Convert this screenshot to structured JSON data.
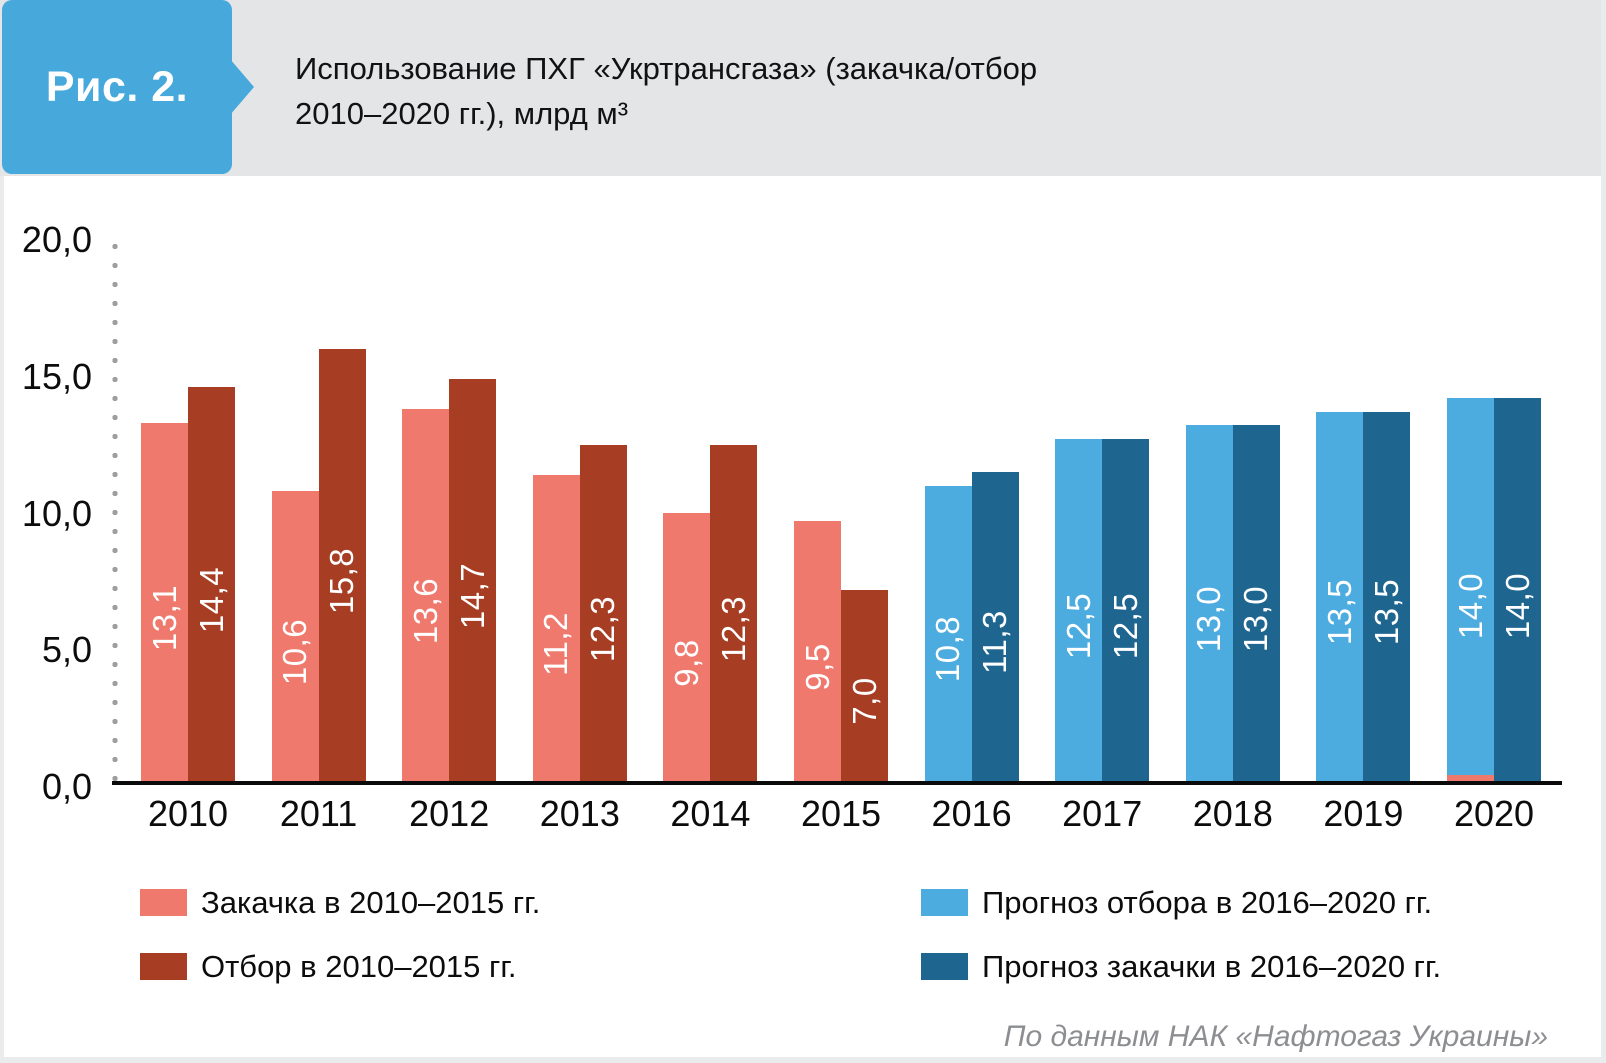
{
  "figure": {
    "badge": "Рис. 2.",
    "title_line1": "Использование ПХГ «Укртрансгаза» (закачка/отбор",
    "title_line2": "2010–2020 гг.), млрд м³",
    "source": "По данным НАК «Нафтогаз Украины»"
  },
  "colors": {
    "badge_blue": "#47A8DC",
    "header_strip": "#E4E5E7",
    "injection_actual": "#F0796E",
    "withdrawal_actual": "#A73E24",
    "withdrawal_forecast": "#4CABDF",
    "injection_forecast": "#1E6590",
    "axis_dots": "#9C9EA0",
    "source_text": "#8C8E91"
  },
  "chart_data": {
    "type": "bar",
    "title": "Использование ПХГ «Укртрансгаза» (закачка/отбор 2010–2020 гг.), млрд м³",
    "unit": "млрд м³",
    "categories": [
      "2010",
      "2011",
      "2012",
      "2013",
      "2014",
      "2015",
      "2016",
      "2017",
      "2018",
      "2019",
      "2020"
    ],
    "series": [
      {
        "name": "Закачка в 2010–2015 гг.",
        "key": "injection-actual",
        "color": "#F0796E",
        "values": [
          13.1,
          10.6,
          13.6,
          11.2,
          9.8,
          9.5,
          null,
          null,
          null,
          null,
          null
        ]
      },
      {
        "name": "Отбор в 2010–2015 гг.",
        "key": "withdrawal-actual",
        "color": "#A73E24",
        "values": [
          14.4,
          15.8,
          14.7,
          12.3,
          12.3,
          7.0,
          null,
          null,
          null,
          null,
          null
        ]
      },
      {
        "name": "Прогноз отбора в 2016–2020 гг.",
        "key": "withdrawal-forecast",
        "color": "#4CABDF",
        "values": [
          null,
          null,
          null,
          null,
          null,
          null,
          10.8,
          12.5,
          13.0,
          13.5,
          14.0
        ]
      },
      {
        "name": "Прогноз закачки в 2016–2020 гг.",
        "key": "injection-forecast",
        "color": "#1E6590",
        "values": [
          null,
          null,
          null,
          null,
          null,
          null,
          11.3,
          12.5,
          13.0,
          13.5,
          14.0
        ]
      }
    ],
    "ylim": [
      0,
      20
    ],
    "yticks": [
      20,
      15,
      10,
      5,
      0
    ],
    "ytick_labels": [
      "20,0",
      "15,0",
      "10,0",
      "5,0",
      "0,0"
    ],
    "decimal_separator": ",",
    "value_labels": "inside bars, rotated 90°, white",
    "grid": "dotted vertical axis only, no gridlines",
    "legend_position": "bottom, two columns",
    "visual_artifact": "thin injection-color strip at base of 2020 forecast-withdrawal bar"
  }
}
